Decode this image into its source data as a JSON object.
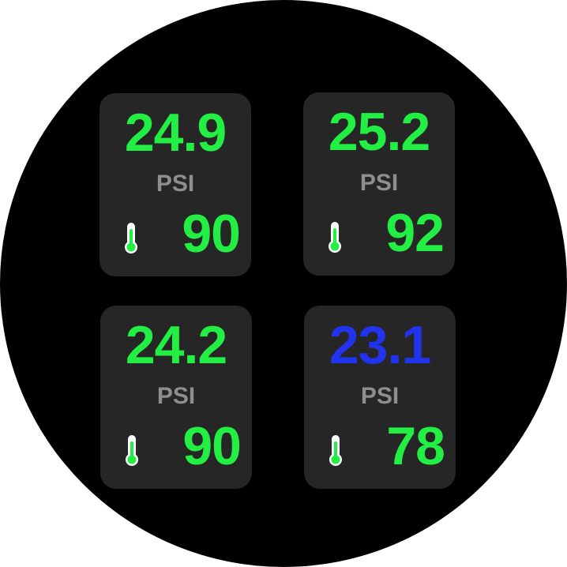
{
  "unit_label": "PSI",
  "colors": {
    "normal": "#22ee44",
    "low": "#2233ee",
    "unit": "#8e8e8e",
    "card_background": "#262626"
  },
  "tires": [
    {
      "position": "front-left",
      "pressure": "24.9",
      "pressure_status": "normal",
      "temperature": "90"
    },
    {
      "position": "front-right",
      "pressure": "25.2",
      "pressure_status": "normal",
      "temperature": "92"
    },
    {
      "position": "rear-left",
      "pressure": "24.2",
      "pressure_status": "normal",
      "temperature": "90"
    },
    {
      "position": "rear-right",
      "pressure": "23.1",
      "pressure_status": "low",
      "temperature": "78"
    }
  ]
}
